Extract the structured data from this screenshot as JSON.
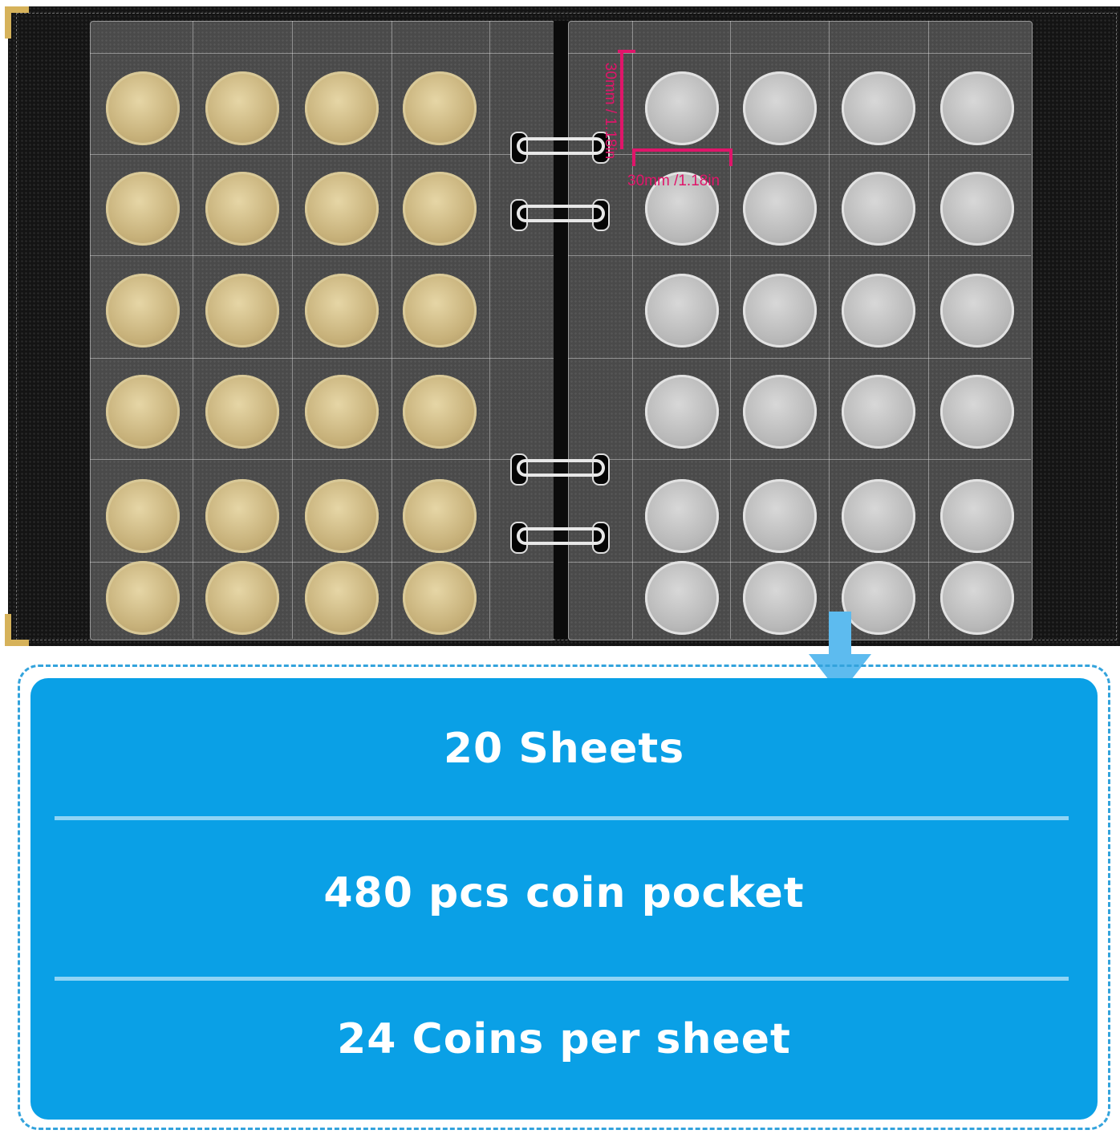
{
  "dimensions": {
    "height_label": "30mm / 1.18in",
    "width_label": "30mm /1.18in",
    "color": "#e0156a"
  },
  "album": {
    "left_page_coin": "gold-dollar-coin",
    "right_page_coin": "silver-half-dollar-coin",
    "columns_per_page": 4,
    "rows_per_page": 6
  },
  "info": {
    "accent_color": "#0aa0e6",
    "items": [
      {
        "label": "20 Sheets"
      },
      {
        "label": "480 pcs coin pocket"
      },
      {
        "label": "24 Coins per sheet"
      }
    ]
  }
}
